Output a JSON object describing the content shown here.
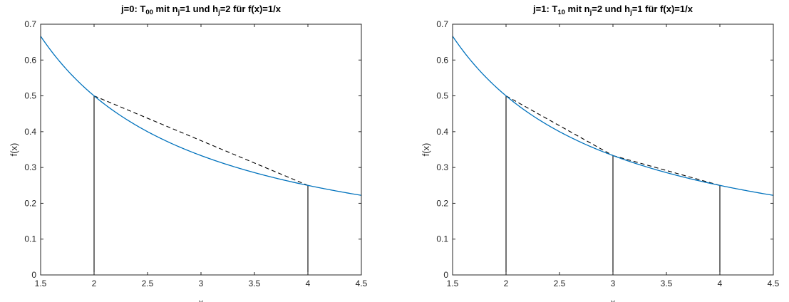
{
  "chart_data": [
    {
      "type": "line",
      "title": {
        "prefix": "j=0: T",
        "sub1": "00",
        "mid1": " mit n",
        "sub2": "j",
        "mid2": "=1 und h",
        "sub3": "j",
        "suffix": "=2 für f(x)=1/x"
      },
      "xlabel": "x",
      "ylabel": "f(x)",
      "xlim": [
        1.5,
        4.5
      ],
      "ylim": [
        0,
        0.7
      ],
      "xticks": [
        "1.5",
        "2",
        "2.5",
        "3",
        "3.5",
        "4",
        "4.5"
      ],
      "yticks": [
        "0",
        "0.1",
        "0.2",
        "0.3",
        "0.4",
        "0.5",
        "0.6",
        "0.7"
      ],
      "function": "1/x",
      "function_color": "#0072BD",
      "trapezoid_nodes": [
        [
          2,
          0.5
        ],
        [
          4,
          0.25
        ]
      ],
      "vertical_lines_x": [
        2,
        4
      ],
      "grid": false
    },
    {
      "type": "line",
      "title": {
        "prefix": "j=1: T",
        "sub1": "10",
        "mid1": " mit n",
        "sub2": "j",
        "mid2": "=2 und h",
        "sub3": "j",
        "suffix": "=1 für f(x)=1/x"
      },
      "xlabel": "x",
      "ylabel": "f(x)",
      "xlim": [
        1.5,
        4.5
      ],
      "ylim": [
        0,
        0.7
      ],
      "xticks": [
        "1.5",
        "2",
        "2.5",
        "3",
        "3.5",
        "4",
        "4.5"
      ],
      "yticks": [
        "0",
        "0.1",
        "0.2",
        "0.3",
        "0.4",
        "0.5",
        "0.6",
        "0.7"
      ],
      "function": "1/x",
      "function_color": "#0072BD",
      "trapezoid_nodes": [
        [
          2,
          0.5
        ],
        [
          3,
          0.3333
        ],
        [
          4,
          0.25
        ]
      ],
      "vertical_lines_x": [
        2,
        3,
        4
      ],
      "grid": false
    }
  ]
}
